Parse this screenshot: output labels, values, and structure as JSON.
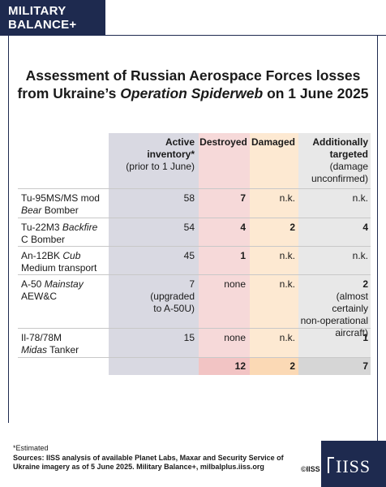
{
  "brand": {
    "line1": "MILITARY",
    "line2": "BALANCE+"
  },
  "title": {
    "line1": "Assessment of Russian Aerospace Forces losses",
    "line2_prefix": "from Ukraine’s ",
    "line2_italic": "Operation Spiderweb",
    "line2_suffix": " on 1 June 2025"
  },
  "columns": {
    "inventory": {
      "line1": "Active",
      "line2": "inventory*",
      "line3": "(prior to 1 June)"
    },
    "destroyed": "Destroyed",
    "damaged": "Damaged",
    "additional": {
      "line1": "Additionally",
      "line2": "targeted",
      "line3": "(damage",
      "line4": "unconfirmed)"
    }
  },
  "rows": [
    {
      "name_a": "Tu-95MS/MS mod",
      "name_b_italic": "Bear",
      "name_b_rest": " Bomber",
      "inventory": "58",
      "destroyed": "7",
      "damaged": "n.k.",
      "additional": "n.k."
    },
    {
      "name_a_prefix": "Tu-22M3 ",
      "name_a_italic": "Backfire",
      "name_b": "C Bomber",
      "inventory": "54",
      "destroyed": "4",
      "damaged": "2",
      "additional": "4"
    },
    {
      "name_a_prefix": "An-12BK ",
      "name_a_italic": "Cub",
      "name_b": "Medium transport",
      "inventory": "45",
      "destroyed": "1",
      "damaged": "n.k.",
      "additional": "n.k."
    },
    {
      "name_a_prefix": "A-50 ",
      "name_a_italic": "Mainstay",
      "name_b": "AEW&C",
      "inventory": "7",
      "inventory_note1": "(upgraded",
      "inventory_note2": "to A-50U)",
      "destroyed": "none",
      "damaged": "n.k.",
      "additional": "2",
      "additional_note1": "(almost certainly",
      "additional_note2": "non-operational",
      "additional_note3": "aircraft)"
    },
    {
      "name_a": "Il-78/78M",
      "name_b_italic": "Midas",
      "name_b_rest": " Tanker",
      "inventory": "15",
      "destroyed": "none",
      "damaged": "n.k.",
      "additional": "1"
    }
  ],
  "totals": {
    "destroyed": "12",
    "damaged": "2",
    "additional": "7"
  },
  "footnote": "*Estimated",
  "sources": "Sources: IISS analysis of available Planet Labs, Maxar and Security Service of Ukraine imagery as of 5 June 2025. Military Balance+, milbalplus.iiss.org",
  "copyright": "©IISS",
  "logo": "IISS",
  "colors": {
    "navy": "#1e2a4f",
    "destroyed": "#f6d9d9",
    "damaged": "#fde9d2",
    "inventory": "#d9d9e2",
    "additional": "#e8e8e8"
  }
}
